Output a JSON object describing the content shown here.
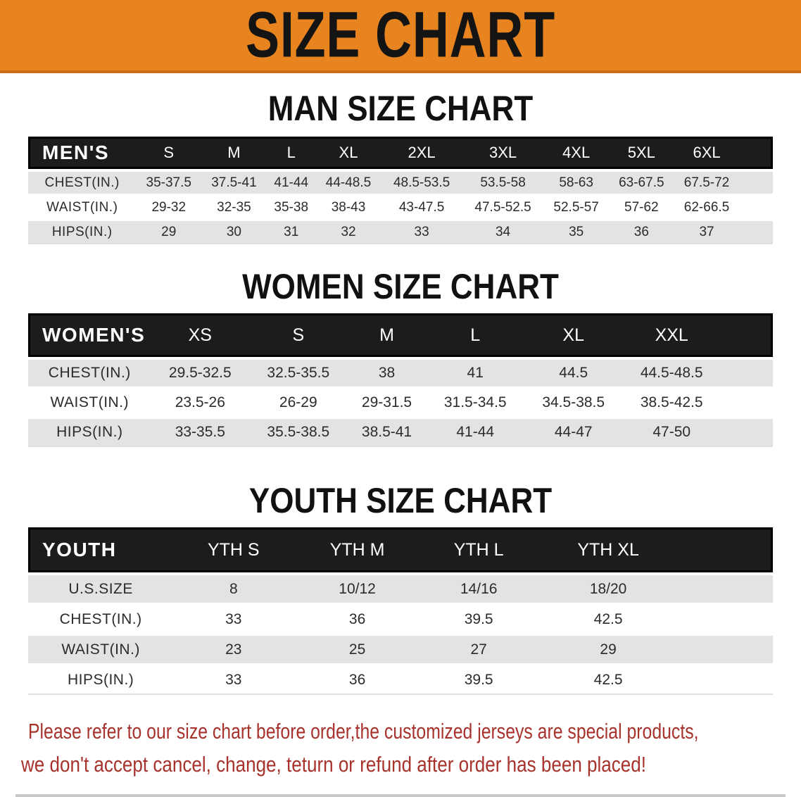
{
  "banner": {
    "title": "SIZE CHART"
  },
  "sections": [
    {
      "heading": "MAN SIZE CHART",
      "table": {
        "corner_label": "MEN'S",
        "columns": [
          "S",
          "M",
          "L",
          "XL",
          "2XL",
          "3XL",
          "4XL",
          "5XL",
          "6XL"
        ],
        "rows": [
          {
            "label": "CHEST(IN.)",
            "values": [
              "35-37.5",
              "37.5-41",
              "41-44",
              "44-48.5",
              "48.5-53.5",
              "53.5-58",
              "58-63",
              "63-67.5",
              "67.5-72"
            ]
          },
          {
            "label": "WAIST(IN.)",
            "values": [
              "29-32",
              "32-35",
              "35-38",
              "38-43",
              "43-47.5",
              "47.5-52.5",
              "52.5-57",
              "57-62",
              "62-66.5"
            ]
          },
          {
            "label": "HIPS(IN.)",
            "values": [
              "29",
              "30",
              "31",
              "32",
              "33",
              "34",
              "35",
              "36",
              "37"
            ]
          }
        ]
      }
    },
    {
      "heading": "WOMEN SIZE CHART",
      "table": {
        "corner_label": "WOMEN'S",
        "columns": [
          "XS",
          "S",
          "M",
          "L",
          "XL",
          "XXL"
        ],
        "rows": [
          {
            "label": "CHEST(IN.)",
            "values": [
              "29.5-32.5",
              "32.5-35.5",
              "38",
              "41",
              "44.5",
              "44.5-48.5"
            ]
          },
          {
            "label": "WAIST(IN.)",
            "values": [
              "23.5-26",
              "26-29",
              "29-31.5",
              "31.5-34.5",
              "34.5-38.5",
              "38.5-42.5"
            ]
          },
          {
            "label": "HIPS(IN.)",
            "values": [
              "33-35.5",
              "35.5-38.5",
              "38.5-41",
              "41-44",
              "44-47",
              "47-50"
            ]
          }
        ]
      }
    },
    {
      "heading": "YOUTH SIZE CHART",
      "table": {
        "corner_label": "YOUTH",
        "columns": [
          "YTH S",
          "YTH M",
          "YTH L",
          "YTH XL"
        ],
        "rows": [
          {
            "label": "U.S.SIZE",
            "values": [
              "8",
              "10/12",
              "14/16",
              "18/20"
            ]
          },
          {
            "label": "CHEST(IN.)",
            "values": [
              "33",
              "36",
              "39.5",
              "42.5"
            ]
          },
          {
            "label": "WAIST(IN.)",
            "values": [
              "23",
              "25",
              "27",
              "29"
            ]
          },
          {
            "label": "HIPS(IN.)",
            "values": [
              "33",
              "36",
              "39.5",
              "42.5"
            ]
          }
        ]
      }
    }
  ],
  "disclaimer": {
    "line1": "Please refer to our size chart before order,the customized jerseys are special products,",
    "line2": "we don't accept cancel, change, teturn or refund after order has been placed!"
  },
  "colors": {
    "banner_bg": "#E8841F",
    "banner_edge": "#C96E16",
    "header_bar": "#1c1c1c",
    "stripe": "#e3e3e3",
    "disclaimer_red": "#a8322c"
  }
}
